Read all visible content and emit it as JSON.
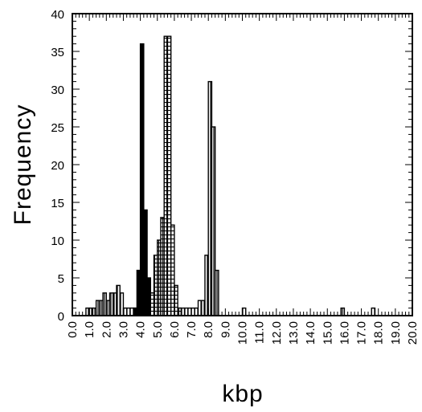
{
  "chart_data": {
    "type": "bar",
    "subtype": "overlaid-histogram",
    "title": "",
    "xlabel": "kbp",
    "ylabel": "Frequency",
    "xlim": [
      0,
      20
    ],
    "ylim": [
      0,
      40
    ],
    "bin_width": 0.2,
    "x_ticks": [
      "0.0",
      "1.0",
      "2.0",
      "3.0",
      "4.0",
      "5.0",
      "6.0",
      "7.0",
      "8.0",
      "9.0",
      "10.0",
      "11.0",
      "12.0",
      "13.0",
      "14.0",
      "15.0",
      "16.0",
      "17.0",
      "18.0",
      "19.0",
      "20.0"
    ],
    "y_ticks": [
      "0",
      "5",
      "10",
      "15",
      "20",
      "25",
      "30",
      "35",
      "40"
    ],
    "grid": false,
    "series": [
      {
        "fill": "vertical-stripes",
        "color": "#000000",
        "bins": [
          {
            "x": 0.8,
            "y": 1
          },
          {
            "x": 1.0,
            "y": 1
          },
          {
            "x": 1.2,
            "y": 1
          },
          {
            "x": 1.4,
            "y": 2
          },
          {
            "x": 1.6,
            "y": 2
          },
          {
            "x": 1.8,
            "y": 3
          },
          {
            "x": 2.0,
            "y": 2
          },
          {
            "x": 2.2,
            "y": 3
          },
          {
            "x": 2.4,
            "y": 3
          },
          {
            "x": 2.6,
            "y": 4
          },
          {
            "x": 2.8,
            "y": 3
          },
          {
            "x": 3.0,
            "y": 1
          },
          {
            "x": 3.2,
            "y": 1
          },
          {
            "x": 3.4,
            "y": 1
          },
          {
            "x": 3.6,
            "y": 1
          },
          {
            "x": 3.8,
            "y": 1
          },
          {
            "x": 4.0,
            "y": 1
          },
          {
            "x": 4.2,
            "y": 1
          },
          {
            "x": 4.4,
            "y": 3
          },
          {
            "x": 4.6,
            "y": 3
          },
          {
            "x": 6.2,
            "y": 1
          },
          {
            "x": 6.4,
            "y": 1
          },
          {
            "x": 6.6,
            "y": 1
          },
          {
            "x": 6.8,
            "y": 1
          },
          {
            "x": 7.0,
            "y": 1
          },
          {
            "x": 7.2,
            "y": 1
          },
          {
            "x": 7.4,
            "y": 2
          },
          {
            "x": 7.6,
            "y": 2
          },
          {
            "x": 7.8,
            "y": 8
          },
          {
            "x": 8.0,
            "y": 31
          },
          {
            "x": 8.2,
            "y": 25
          },
          {
            "x": 8.4,
            "y": 6
          },
          {
            "x": 10.0,
            "y": 1
          },
          {
            "x": 15.8,
            "y": 1
          },
          {
            "x": 17.6,
            "y": 1
          }
        ]
      },
      {
        "fill": "crosshatch",
        "color": "#000000",
        "bins": [
          {
            "x": 4.4,
            "y": 1
          },
          {
            "x": 4.6,
            "y": 3
          },
          {
            "x": 4.8,
            "y": 8
          },
          {
            "x": 5.0,
            "y": 10
          },
          {
            "x": 5.2,
            "y": 13
          },
          {
            "x": 5.4,
            "y": 37
          },
          {
            "x": 5.6,
            "y": 37
          },
          {
            "x": 5.8,
            "y": 12
          },
          {
            "x": 6.0,
            "y": 4
          },
          {
            "x": 6.2,
            "y": 1
          }
        ]
      },
      {
        "fill": "solid",
        "color": "#000000",
        "bins": [
          {
            "x": 3.6,
            "y": 1
          },
          {
            "x": 3.8,
            "y": 6
          },
          {
            "x": 4.0,
            "y": 36
          },
          {
            "x": 4.2,
            "y": 14
          },
          {
            "x": 4.4,
            "y": 5
          }
        ]
      }
    ]
  }
}
